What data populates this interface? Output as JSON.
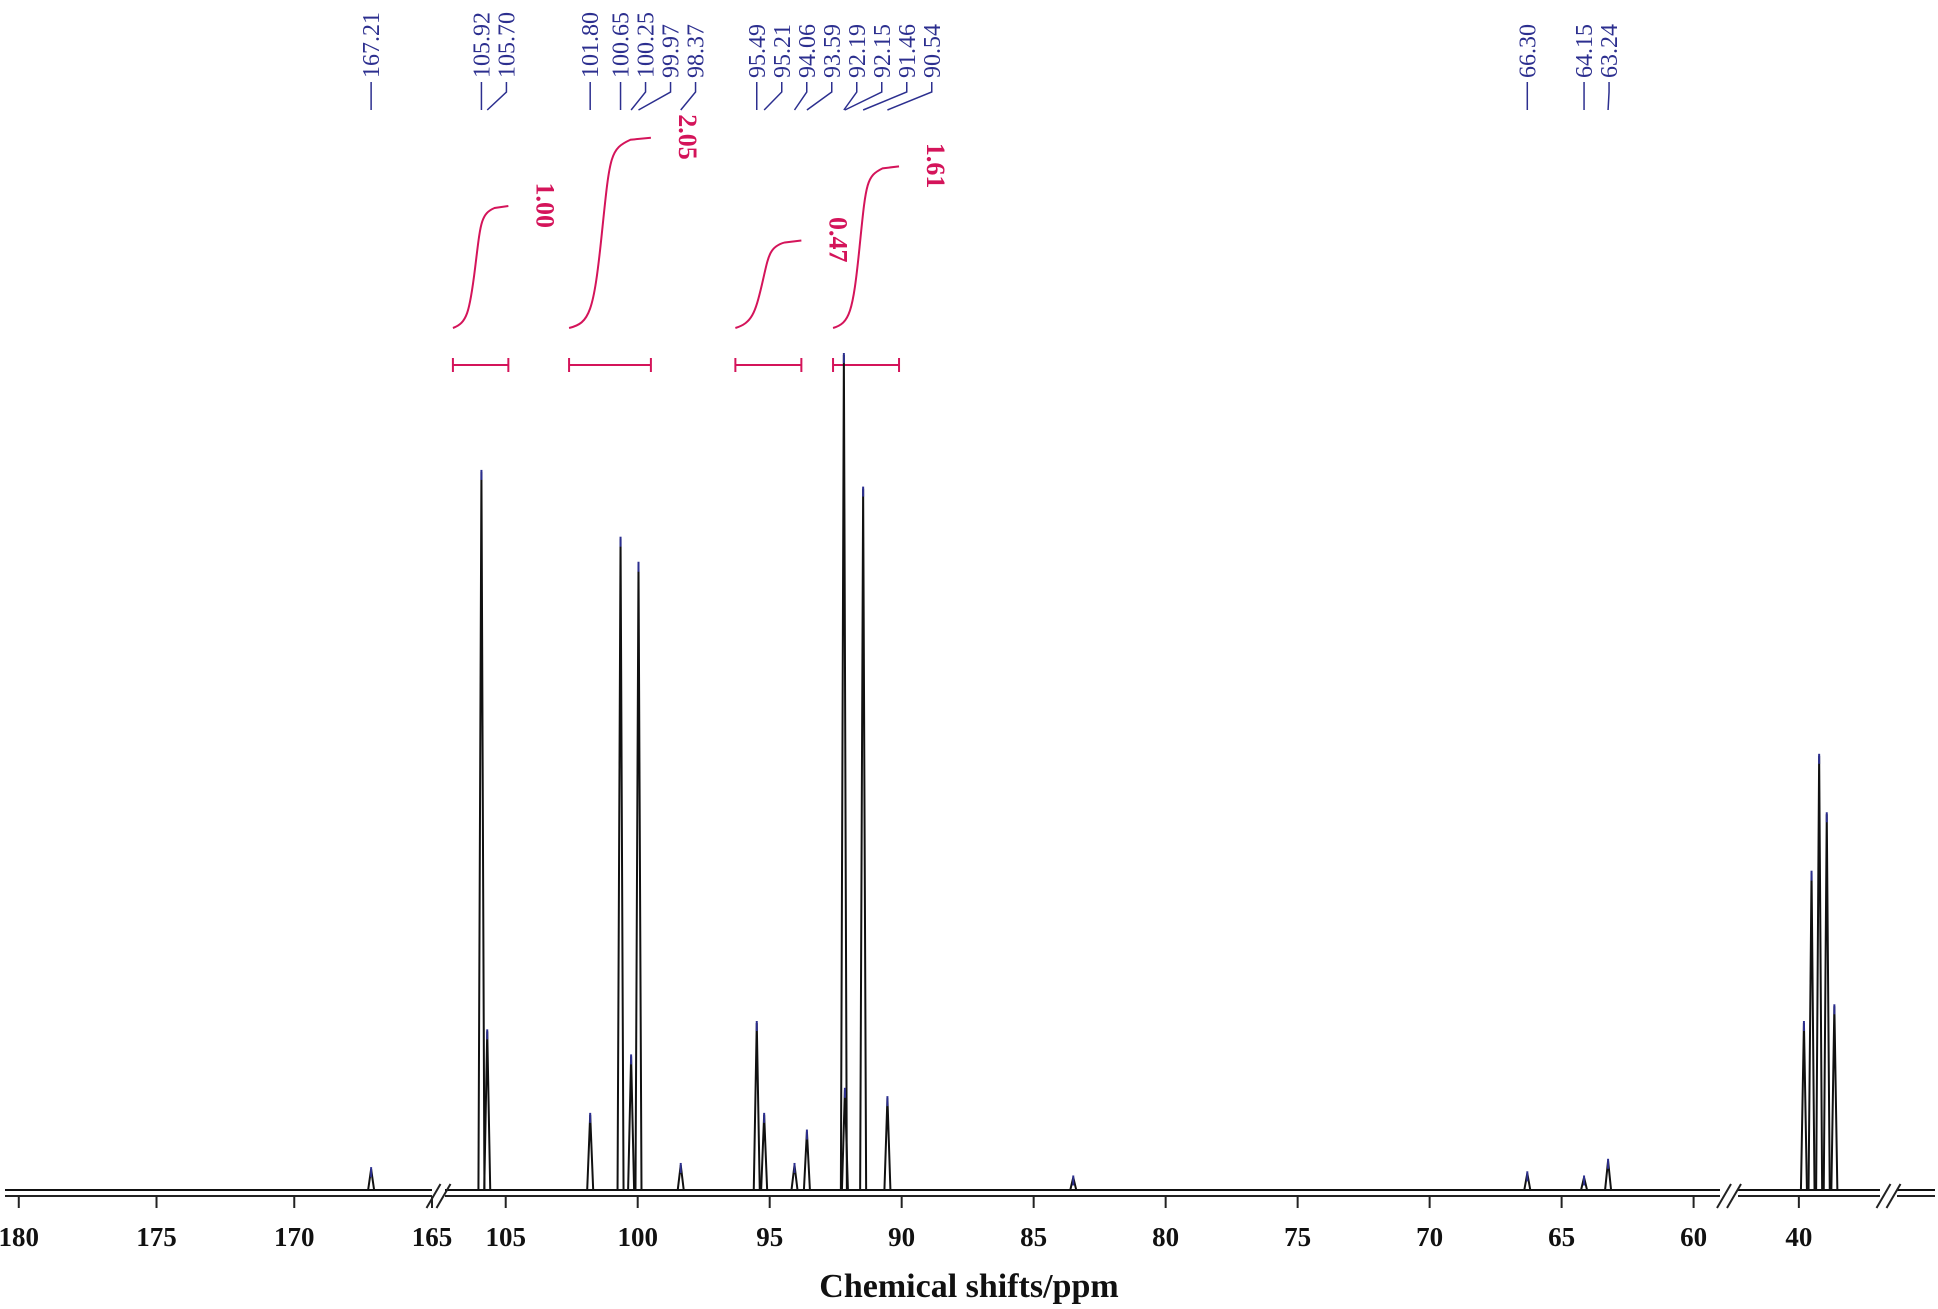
{
  "chart_data": {
    "type": "line",
    "xlabel": "Chemical shifts/ppm",
    "x_axis_reversed": true,
    "axis_break_style": "double-slash",
    "segments": [
      {
        "range": [
          180.5,
          165
        ],
        "ticks": [
          180,
          175,
          170,
          165
        ]
      },
      {
        "range": [
          107.3,
          59
        ],
        "ticks": [
          105,
          100,
          95,
          90,
          85,
          80,
          75,
          70,
          65,
          60
        ]
      },
      {
        "range": [
          41.2,
          38.4
        ],
        "ticks": [
          40
        ]
      },
      {
        "range": [
          38.4,
          36
        ],
        "ticks": []
      }
    ],
    "peak_labels": [
      "167.21",
      "105.92",
      "105.70",
      "101.80",
      "100.65",
      "100.25",
      "99.97",
      "98.37",
      "95.49",
      "95.21",
      "94.06",
      "93.59",
      "92.19",
      "92.15",
      "91.46",
      "90.54",
      "66.30",
      "64.15",
      "63.24"
    ],
    "peaks": [
      {
        "ppm": 167.21,
        "height": 0.025
      },
      {
        "ppm": 105.92,
        "height": 0.86
      },
      {
        "ppm": 105.7,
        "height": 0.19
      },
      {
        "ppm": 101.8,
        "height": 0.09
      },
      {
        "ppm": 100.65,
        "height": 0.78
      },
      {
        "ppm": 100.25,
        "height": 0.16
      },
      {
        "ppm": 99.97,
        "height": 0.75
      },
      {
        "ppm": 98.37,
        "height": 0.03
      },
      {
        "ppm": 95.49,
        "height": 0.2
      },
      {
        "ppm": 95.21,
        "height": 0.09
      },
      {
        "ppm": 94.06,
        "height": 0.03
      },
      {
        "ppm": 93.59,
        "height": 0.07
      },
      {
        "ppm": 92.19,
        "height": 1.0
      },
      {
        "ppm": 92.15,
        "height": 0.12
      },
      {
        "ppm": 91.46,
        "height": 0.84
      },
      {
        "ppm": 90.54,
        "height": 0.11
      },
      {
        "ppm": 83.5,
        "height": 0.015
      },
      {
        "ppm": 66.3,
        "height": 0.02
      },
      {
        "ppm": 64.15,
        "height": 0.015
      },
      {
        "ppm": 63.24,
        "height": 0.035
      },
      {
        "ppm": 39.9,
        "height": 0.2
      },
      {
        "ppm": 39.75,
        "height": 0.38
      },
      {
        "ppm": 39.6,
        "height": 0.52
      },
      {
        "ppm": 39.45,
        "height": 0.45
      },
      {
        "ppm": 39.3,
        "height": 0.22
      }
    ],
    "integrals": [
      {
        "from": 107.0,
        "to": 104.9,
        "value": "1.00"
      },
      {
        "from": 102.6,
        "to": 99.5,
        "value": "2.05"
      },
      {
        "from": 96.3,
        "to": 93.8,
        "value": "0.47"
      },
      {
        "from": 92.6,
        "to": 90.1,
        "value": "1.61"
      }
    ]
  },
  "colors": {
    "spectrum": "#111111",
    "peak_label": "#2c2f8f",
    "integral": "#d4145a",
    "axis": "#222222"
  }
}
